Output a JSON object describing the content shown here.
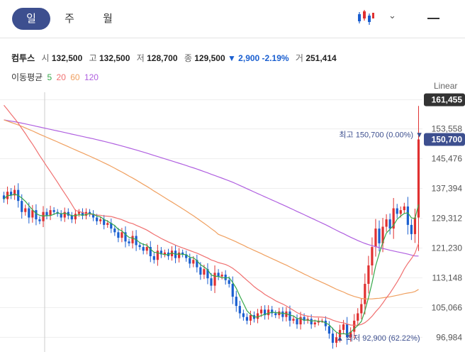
{
  "toolbar": {
    "tabs": [
      {
        "label": "일",
        "active": true
      },
      {
        "label": "주",
        "active": false
      },
      {
        "label": "월",
        "active": false
      }
    ],
    "chart_type_icon": "candlestick-icon",
    "dropdown_icon": "chevron-down-icon",
    "menu_icon": "minus-icon"
  },
  "stock": {
    "name": "컴투스",
    "open_label": "시",
    "open": "132,500",
    "high_label": "고",
    "high": "132,500",
    "low_label": "저",
    "low": "128,700",
    "close_label": "종",
    "close": "129,500",
    "change": "▼ 2,900 -2.19%",
    "volume_label": "거",
    "volume": "251,414"
  },
  "ma": {
    "label": "이동평균",
    "periods": [
      {
        "p": "5",
        "color": "#36a84a"
      },
      {
        "p": "20",
        "color": "#f07070"
      },
      {
        "p": "60",
        "color": "#f0a060"
      },
      {
        "p": "120",
        "color": "#b060e0"
      }
    ]
  },
  "scale": "Linear",
  "colors": {
    "up": "#e03030",
    "down": "#1a5fd0",
    "ma5": "#36a84a",
    "ma20": "#f07070",
    "ma60": "#f0a060",
    "ma120": "#b060e0"
  },
  "chart_data": {
    "type": "candlestick",
    "y_ticks": [
      "161,455",
      "153,558",
      "145,476",
      "137,394",
      "129,312",
      "121,230",
      "113,148",
      "105,066",
      "96,984"
    ],
    "y_tick_values": [
      161455,
      153558,
      145476,
      137394,
      129312,
      121230,
      113148,
      105066,
      96984
    ],
    "ylim": [
      93000,
      163500
    ],
    "price_max_label": "161,455",
    "current_label": "150,700",
    "high_annotation": "최고 150,700 (0.00%) ▼",
    "low_annotation": "▲ 최저 92,900 (62.22%)",
    "closes": [
      134500,
      136500,
      135500,
      137000,
      134000,
      131000,
      132000,
      129500,
      131500,
      129000,
      128500,
      131000,
      130000,
      131500,
      131000,
      130500,
      129500,
      131000,
      130000,
      129000,
      130500,
      131000,
      130000,
      131000,
      130500,
      129500,
      128500,
      129000,
      127500,
      128000,
      126500,
      125500,
      124000,
      125500,
      123000,
      122500,
      124500,
      122000,
      121500,
      120500,
      121500,
      119000,
      118000,
      120500,
      119500,
      120000,
      119000,
      120500,
      118500,
      120000,
      119500,
      118500,
      117000,
      118000,
      116000,
      114000,
      115500,
      113000,
      111000,
      114500,
      113500,
      114000,
      112500,
      111500,
      108000,
      105500,
      103500,
      102500,
      101500,
      103000,
      102000,
      103500,
      104500,
      103000,
      104500,
      103500,
      103000,
      104000,
      102500,
      104000,
      101500,
      102000,
      100500,
      102500,
      101500,
      102000,
      100500,
      101000,
      101500,
      101500,
      100000,
      98000,
      95500,
      97000,
      99000,
      100500,
      97000,
      98500,
      101500,
      103500,
      106000,
      111500,
      116500,
      121500,
      126500,
      122500,
      127000,
      129000,
      126500,
      132000,
      130500,
      131500,
      132500,
      127500,
      125000,
      129500,
      150700
    ]
  }
}
